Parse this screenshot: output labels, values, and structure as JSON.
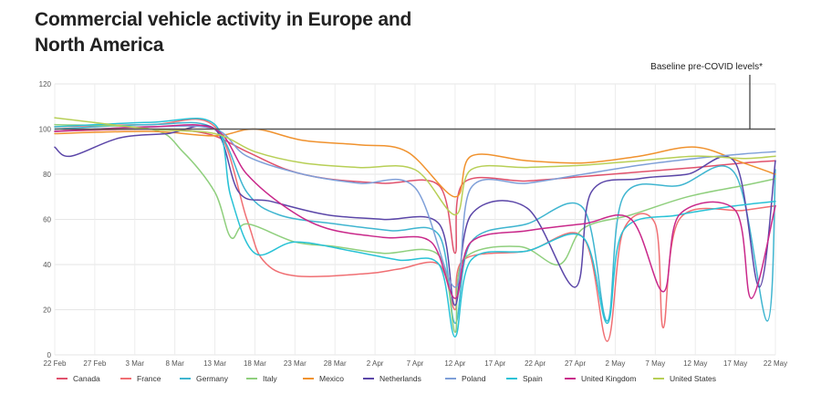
{
  "chart_data": {
    "type": "line",
    "title": "Commercial vehicle activity in Europe and North America",
    "xlabel": "",
    "ylabel": "",
    "ylim": [
      0,
      120
    ],
    "y_ticks": [
      0,
      20,
      40,
      60,
      80,
      100,
      120
    ],
    "x_start": "2020-02-22",
    "x_end": "2020-05-22",
    "x_ticks": [
      "22 Feb",
      "27 Feb",
      "3 Mar",
      "8 Mar",
      "13 Mar",
      "18 Mar",
      "23 Mar",
      "28 Mar",
      "2 Apr",
      "7 Apr",
      "12 Apr",
      "17 Apr",
      "22 Apr",
      "27 Apr",
      "2 May",
      "7 May",
      "12 May",
      "17 May",
      "22 May"
    ],
    "grid": true,
    "legend_position": "bottom",
    "baseline": {
      "label": "Baseline pre-COVID levels*",
      "value": 100
    },
    "series": [
      {
        "name": "Canada",
        "color": "#e0516c",
        "points": [
          [
            "2020-02-22",
            99
          ],
          [
            "2020-03-05",
            100
          ],
          [
            "2020-03-12",
            98
          ],
          [
            "2020-03-17",
            90
          ],
          [
            "2020-03-22",
            82
          ],
          [
            "2020-03-27",
            78
          ],
          [
            "2020-04-03",
            76
          ],
          [
            "2020-04-10",
            75
          ],
          [
            "2020-04-12",
            45
          ],
          [
            "2020-04-13",
            76
          ],
          [
            "2020-04-21",
            77
          ],
          [
            "2020-04-28",
            79
          ],
          [
            "2020-05-05",
            81
          ],
          [
            "2020-05-12",
            83
          ],
          [
            "2020-05-18",
            85
          ],
          [
            "2020-05-22",
            86
          ]
        ]
      },
      {
        "name": "France",
        "color": "#f06f73",
        "points": [
          [
            "2020-02-22",
            101
          ],
          [
            "2020-03-05",
            102
          ],
          [
            "2020-03-13",
            101
          ],
          [
            "2020-03-17",
            60
          ],
          [
            "2020-03-19",
            42
          ],
          [
            "2020-03-23",
            35
          ],
          [
            "2020-04-01",
            36
          ],
          [
            "2020-04-05",
            38
          ],
          [
            "2020-04-10",
            40
          ],
          [
            "2020-04-12",
            20
          ],
          [
            "2020-04-13",
            42
          ],
          [
            "2020-04-21",
            46
          ],
          [
            "2020-04-28",
            52
          ],
          [
            "2020-05-01",
            6
          ],
          [
            "2020-05-03",
            55
          ],
          [
            "2020-05-07",
            58
          ],
          [
            "2020-05-08",
            12
          ],
          [
            "2020-05-10",
            60
          ],
          [
            "2020-05-18",
            64
          ],
          [
            "2020-05-22",
            66
          ]
        ]
      },
      {
        "name": "Germany",
        "color": "#3fb5d0",
        "points": [
          [
            "2020-02-22",
            100
          ],
          [
            "2020-03-05",
            102
          ],
          [
            "2020-03-13",
            100
          ],
          [
            "2020-03-17",
            72
          ],
          [
            "2020-03-21",
            62
          ],
          [
            "2020-03-28",
            58
          ],
          [
            "2020-04-04",
            55
          ],
          [
            "2020-04-10",
            53
          ],
          [
            "2020-04-12",
            14
          ],
          [
            "2020-04-14",
            50
          ],
          [
            "2020-04-21",
            58
          ],
          [
            "2020-04-28",
            65
          ],
          [
            "2020-05-01",
            15
          ],
          [
            "2020-05-03",
            70
          ],
          [
            "2020-05-10",
            75
          ],
          [
            "2020-05-17",
            80
          ],
          [
            "2020-05-21",
            15
          ],
          [
            "2020-05-22",
            82
          ]
        ]
      },
      {
        "name": "Italy",
        "color": "#8fcf7d",
        "points": [
          [
            "2020-02-22",
            102
          ],
          [
            "2020-03-05",
            100
          ],
          [
            "2020-03-09",
            90
          ],
          [
            "2020-03-13",
            72
          ],
          [
            "2020-03-15",
            52
          ],
          [
            "2020-03-17",
            58
          ],
          [
            "2020-03-23",
            50
          ],
          [
            "2020-03-28",
            48
          ],
          [
            "2020-04-03",
            45
          ],
          [
            "2020-04-10",
            44
          ],
          [
            "2020-04-12",
            10
          ],
          [
            "2020-04-13",
            42
          ],
          [
            "2020-04-20",
            48
          ],
          [
            "2020-04-25",
            40
          ],
          [
            "2020-04-28",
            56
          ],
          [
            "2020-05-04",
            62
          ],
          [
            "2020-05-11",
            70
          ],
          [
            "2020-05-18",
            75
          ],
          [
            "2020-05-22",
            78
          ]
        ]
      },
      {
        "name": "Mexico",
        "color": "#f0922e",
        "points": [
          [
            "2020-02-22",
            98
          ],
          [
            "2020-03-05",
            99
          ],
          [
            "2020-03-13",
            97
          ],
          [
            "2020-03-18",
            100
          ],
          [
            "2020-03-24",
            95
          ],
          [
            "2020-03-31",
            93
          ],
          [
            "2020-04-06",
            90
          ],
          [
            "2020-04-12",
            70
          ],
          [
            "2020-04-14",
            88
          ],
          [
            "2020-04-21",
            86
          ],
          [
            "2020-04-28",
            85
          ],
          [
            "2020-05-05",
            88
          ],
          [
            "2020-05-12",
            92
          ],
          [
            "2020-05-18",
            85
          ],
          [
            "2020-05-22",
            80
          ]
        ]
      },
      {
        "name": "Netherlands",
        "color": "#5b46a8",
        "points": [
          [
            "2020-02-22",
            92
          ],
          [
            "2020-02-24",
            88
          ],
          [
            "2020-03-01",
            96
          ],
          [
            "2020-03-07",
            98
          ],
          [
            "2020-03-13",
            100
          ],
          [
            "2020-03-16",
            72
          ],
          [
            "2020-03-20",
            68
          ],
          [
            "2020-03-27",
            62
          ],
          [
            "2020-04-03",
            60
          ],
          [
            "2020-04-10",
            58
          ],
          [
            "2020-04-12",
            22
          ],
          [
            "2020-04-14",
            62
          ],
          [
            "2020-04-21",
            65
          ],
          [
            "2020-04-27",
            30
          ],
          [
            "2020-04-29",
            72
          ],
          [
            "2020-05-05",
            78
          ],
          [
            "2020-05-11",
            80
          ],
          [
            "2020-05-17",
            85
          ],
          [
            "2020-05-20",
            30
          ],
          [
            "2020-05-22",
            86
          ]
        ]
      },
      {
        "name": "Poland",
        "color": "#7e9fd8",
        "points": [
          [
            "2020-02-22",
            99
          ],
          [
            "2020-03-05",
            101
          ],
          [
            "2020-03-13",
            100
          ],
          [
            "2020-03-17",
            88
          ],
          [
            "2020-03-24",
            80
          ],
          [
            "2020-03-31",
            76
          ],
          [
            "2020-04-07",
            74
          ],
          [
            "2020-04-12",
            30
          ],
          [
            "2020-04-14",
            74
          ],
          [
            "2020-04-21",
            76
          ],
          [
            "2020-04-28",
            80
          ],
          [
            "2020-05-05",
            84
          ],
          [
            "2020-05-12",
            87
          ],
          [
            "2020-05-18",
            89
          ],
          [
            "2020-05-22",
            90
          ]
        ]
      },
      {
        "name": "Spain",
        "color": "#29c2d6",
        "points": [
          [
            "2020-02-22",
            101
          ],
          [
            "2020-03-05",
            103
          ],
          [
            "2020-03-13",
            102
          ],
          [
            "2020-03-15",
            70
          ],
          [
            "2020-03-18",
            45
          ],
          [
            "2020-03-23",
            50
          ],
          [
            "2020-03-30",
            46
          ],
          [
            "2020-04-05",
            42
          ],
          [
            "2020-04-10",
            40
          ],
          [
            "2020-04-12",
            8
          ],
          [
            "2020-04-14",
            42
          ],
          [
            "2020-04-21",
            46
          ],
          [
            "2020-04-28",
            52
          ],
          [
            "2020-05-01",
            14
          ],
          [
            "2020-05-03",
            55
          ],
          [
            "2020-05-10",
            62
          ],
          [
            "2020-05-17",
            66
          ],
          [
            "2020-05-22",
            68
          ]
        ]
      },
      {
        "name": "United Kingdom",
        "color": "#c9288a",
        "points": [
          [
            "2020-02-22",
            99
          ],
          [
            "2020-03-05",
            101
          ],
          [
            "2020-03-13",
            100
          ],
          [
            "2020-03-17",
            80
          ],
          [
            "2020-03-22",
            65
          ],
          [
            "2020-03-27",
            56
          ],
          [
            "2020-04-03",
            52
          ],
          [
            "2020-04-09",
            50
          ],
          [
            "2020-04-12",
            25
          ],
          [
            "2020-04-14",
            50
          ],
          [
            "2020-04-21",
            55
          ],
          [
            "2020-04-28",
            58
          ],
          [
            "2020-05-04",
            60
          ],
          [
            "2020-05-08",
            28
          ],
          [
            "2020-05-10",
            62
          ],
          [
            "2020-05-17",
            64
          ],
          [
            "2020-05-19",
            25
          ],
          [
            "2020-05-22",
            66
          ]
        ]
      },
      {
        "name": "United States",
        "color": "#b7cf56",
        "points": [
          [
            "2020-02-22",
            105
          ],
          [
            "2020-03-05",
            100
          ],
          [
            "2020-03-13",
            98
          ],
          [
            "2020-03-18",
            90
          ],
          [
            "2020-03-24",
            85
          ],
          [
            "2020-03-31",
            83
          ],
          [
            "2020-04-07",
            82
          ],
          [
            "2020-04-12",
            62
          ],
          [
            "2020-04-14",
            82
          ],
          [
            "2020-04-21",
            83
          ],
          [
            "2020-04-28",
            84
          ],
          [
            "2020-05-05",
            86
          ],
          [
            "2020-05-12",
            88
          ],
          [
            "2020-05-18",
            87
          ],
          [
            "2020-05-22",
            88
          ]
        ]
      }
    ]
  }
}
